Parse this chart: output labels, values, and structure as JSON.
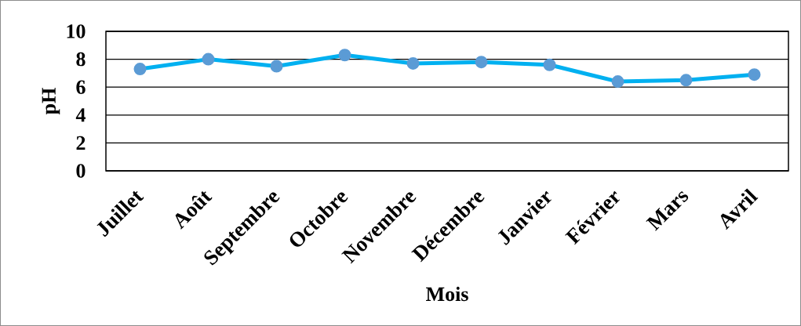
{
  "chart_data": {
    "type": "line",
    "xlabel": "Mois",
    "ylabel": "pH",
    "categories": [
      "Juillet",
      "Août",
      "Septembre",
      "Octobre",
      "Novembre",
      "Décembre",
      "Janvier",
      "Février",
      "Mars",
      "Avril"
    ],
    "series": [
      {
        "color": "#00b0f0",
        "values": [
          7.3,
          8.0,
          7.5,
          8.3,
          7.7,
          7.8,
          7.6,
          6.4,
          6.5,
          6.9
        ]
      }
    ],
    "ylim": [
      0,
      10
    ],
    "yticks": [
      0,
      2,
      4,
      6,
      8,
      10
    ],
    "grid": "y",
    "marker": "circle",
    "line_style": "solid"
  }
}
